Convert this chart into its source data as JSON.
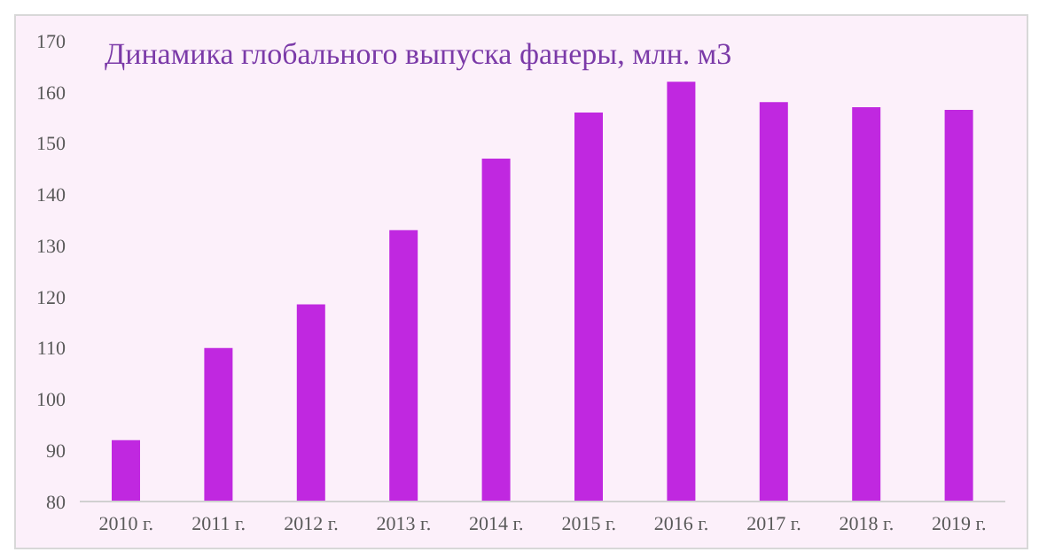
{
  "chart_data": {
    "type": "bar",
    "title": "Динамика глобального выпуска фанеры, млн. м3",
    "categories": [
      "2010 г.",
      "2011 г.",
      "2012 г.",
      "2013 г.",
      "2014 г.",
      "2015 г.",
      "2016 г.",
      "2017 г.",
      "2018 г.",
      "2019 г."
    ],
    "values": [
      92,
      110,
      118.5,
      133,
      147,
      156,
      162,
      158,
      157,
      156.5
    ],
    "color": "#c028e0",
    "ylim": [
      80,
      170
    ],
    "yticks": [
      80,
      90,
      100,
      110,
      120,
      130,
      140,
      150,
      160,
      170
    ],
    "grid": false
  }
}
